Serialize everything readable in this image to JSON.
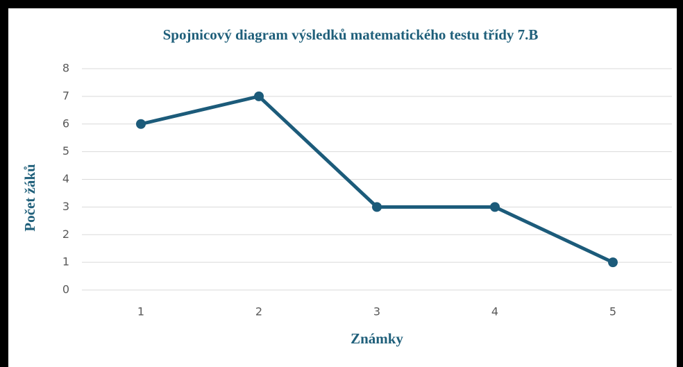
{
  "chart_data": {
    "type": "line",
    "title": "Spojnicový diagram výsledků matematického testu třídy 7.B",
    "x_label": "Známky",
    "y_label": "Počet žáků",
    "categories": [
      "1",
      "2",
      "3",
      "4",
      "5"
    ],
    "series": [
      {
        "name": "Počet žáků",
        "color": "#1c5b7a",
        "values": [
          6,
          7,
          3,
          3,
          1
        ]
      }
    ],
    "ylim": [
      0,
      8
    ],
    "yticks": [
      0,
      1,
      2,
      3,
      4,
      5,
      6,
      7,
      8
    ],
    "grid": true
  }
}
